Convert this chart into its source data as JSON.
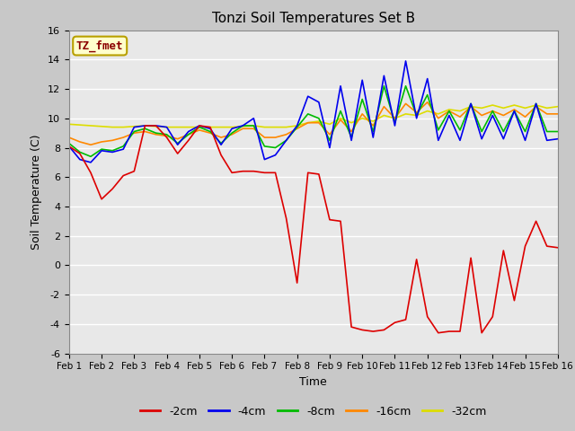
{
  "title": "Tonzi Soil Temperatures Set B",
  "xlabel": "Time",
  "ylabel": "Soil Temperature (C)",
  "ylim": [
    -6,
    16
  ],
  "yticks": [
    -6,
    -4,
    -2,
    0,
    2,
    4,
    6,
    8,
    10,
    12,
    14,
    16
  ],
  "fig_bg": "#c8c8c8",
  "plot_bg": "#e8e8e8",
  "grid_color": "#ffffff",
  "annotation_text": "TZ_fmet",
  "annotation_color": "#8b0000",
  "annotation_bg": "#ffffcc",
  "annotation_border": "#b8a000",
  "x_labels": [
    "Feb 1",
    "Feb 2",
    "Feb 3",
    "Feb 4",
    "Feb 5",
    "Feb 6",
    "Feb 7",
    "Feb 8",
    "Feb 9",
    "Feb 10",
    "Feb 11",
    "Feb 12",
    "Feb 13",
    "Feb 14",
    "Feb 15",
    "Feb 16"
  ],
  "series": {
    "neg2cm": {
      "color": "#dd0000",
      "label": "-2cm",
      "data": [
        8.1,
        7.6,
        6.3,
        4.5,
        5.2,
        6.1,
        6.4,
        9.5,
        9.5,
        8.7,
        7.6,
        8.5,
        9.5,
        9.4,
        7.5,
        6.3,
        6.4,
        6.4,
        6.3,
        6.3,
        3.2,
        -1.2,
        6.3,
        6.2,
        3.1,
        3.0,
        -4.2,
        -4.4,
        -4.5,
        -4.4,
        -3.9,
        -3.7,
        0.4,
        -3.5,
        -4.6,
        -4.5,
        -4.5,
        0.5,
        -4.6,
        -3.5,
        1.0,
        -2.4,
        1.3,
        3.0,
        1.3,
        1.2
      ]
    },
    "neg4cm": {
      "color": "#0000ee",
      "label": "-4cm",
      "data": [
        8.1,
        7.2,
        7.0,
        7.8,
        7.7,
        7.9,
        9.4,
        9.5,
        9.5,
        9.4,
        8.2,
        9.1,
        9.5,
        9.3,
        8.2,
        9.3,
        9.5,
        10.0,
        7.2,
        7.5,
        8.5,
        9.5,
        11.5,
        11.1,
        8.0,
        12.2,
        8.5,
        12.6,
        8.7,
        12.9,
        9.5,
        13.9,
        10.0,
        12.7,
        8.5,
        10.2,
        8.5,
        11.0,
        8.6,
        10.2,
        8.6,
        10.5,
        8.5,
        11.0,
        8.5,
        8.6
      ]
    },
    "neg8cm": {
      "color": "#00bb00",
      "label": "-8cm",
      "data": [
        8.3,
        7.7,
        7.4,
        7.9,
        7.8,
        8.1,
        9.1,
        9.3,
        9.0,
        8.9,
        8.3,
        8.9,
        9.4,
        9.1,
        8.3,
        9.0,
        9.5,
        9.5,
        8.1,
        8.0,
        8.5,
        9.4,
        10.3,
        10.0,
        8.5,
        10.5,
        8.7,
        11.3,
        9.1,
        12.2,
        9.7,
        12.2,
        10.2,
        11.6,
        9.2,
        10.5,
        9.2,
        11.0,
        9.1,
        10.5,
        9.1,
        10.5,
        9.1,
        11.0,
        9.1,
        9.1
      ]
    },
    "neg16cm": {
      "color": "#ff8800",
      "label": "-16cm",
      "data": [
        8.7,
        8.4,
        8.2,
        8.4,
        8.5,
        8.7,
        9.0,
        9.1,
        8.9,
        8.8,
        8.6,
        8.9,
        9.2,
        9.0,
        8.7,
        8.9,
        9.3,
        9.3,
        8.7,
        8.7,
        8.9,
        9.3,
        9.7,
        9.7,
        8.9,
        9.9,
        9.1,
        10.3,
        9.5,
        10.8,
        10.0,
        11.0,
        10.4,
        11.1,
        10.0,
        10.5,
        10.1,
        10.8,
        10.2,
        10.5,
        10.2,
        10.6,
        10.1,
        10.8,
        10.3,
        10.3
      ]
    },
    "neg32cm": {
      "color": "#dddd00",
      "label": "-32cm",
      "data": [
        9.6,
        9.55,
        9.5,
        9.45,
        9.4,
        9.4,
        9.45,
        9.5,
        9.45,
        9.4,
        9.4,
        9.4,
        9.4,
        9.4,
        9.4,
        9.4,
        9.45,
        9.5,
        9.4,
        9.4,
        9.4,
        9.5,
        9.7,
        9.8,
        9.6,
        10.0,
        9.7,
        10.0,
        9.8,
        10.2,
        10.0,
        10.3,
        10.2,
        10.5,
        10.3,
        10.6,
        10.5,
        10.8,
        10.7,
        10.9,
        10.7,
        10.9,
        10.7,
        10.9,
        10.7,
        10.8
      ]
    }
  }
}
